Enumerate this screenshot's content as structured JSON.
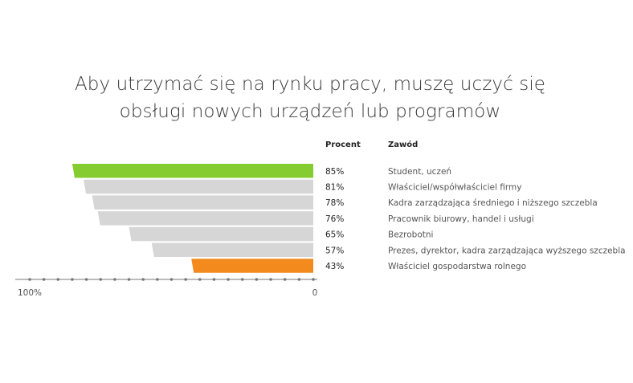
{
  "page": {
    "title_line1": "Aby utrzymać się na rynku pracy, muszę uczyć się",
    "title_line2": "obsługi nowych urządzeń lub programów",
    "col_percent": "Procent",
    "col_occupation": "Zawód"
  },
  "chart_data": {
    "type": "bar",
    "orientation": "horizontal",
    "direction": "right-to-left",
    "categories": [
      "Student, uczeń",
      "Właściciel/współwłaściciel firmy",
      "Kadra zarządzająca średniego i niższego szczebla",
      "Pracownik biurowy, handel i usługi",
      "Bezrobotni",
      "Prezes, dyrektor, kadra zarządzająca wyższego szczebla",
      "Właściciel gospodarstwa rolnego"
    ],
    "values": [
      85,
      81,
      78,
      76,
      65,
      57,
      43
    ],
    "value_labels": [
      "85%",
      "81%",
      "78%",
      "76%",
      "65%",
      "57%",
      "43%"
    ],
    "bar_colors": [
      "#84cc2f",
      "#d6d6d6",
      "#d6d6d6",
      "#d6d6d6",
      "#d6d6d6",
      "#d6d6d6",
      "#f28a1d"
    ],
    "xlim": [
      0,
      100
    ],
    "x_tick_labels": [
      "100%",
      "0"
    ],
    "axis_color": "#777777"
  }
}
